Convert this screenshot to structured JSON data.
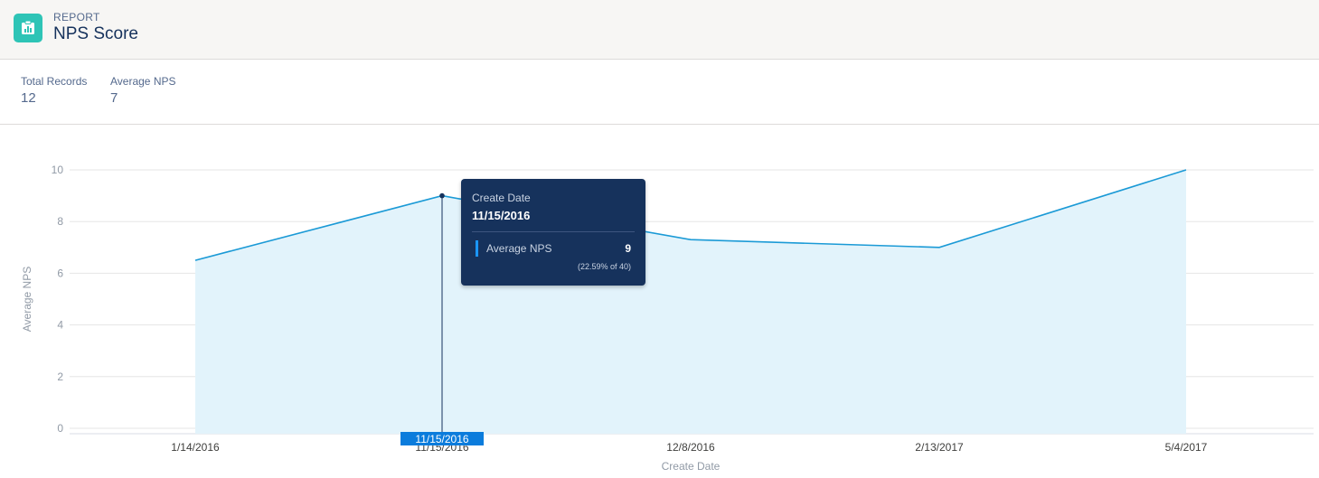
{
  "header": {
    "eyebrow": "REPORT",
    "title": "NPS Score",
    "icon": "report-icon"
  },
  "stats": [
    {
      "label": "Total Records",
      "value": "12"
    },
    {
      "label": "Average NPS",
      "value": "7"
    }
  ],
  "tooltip": {
    "label": "Create Date",
    "date": "11/15/2016",
    "series": "Average NPS",
    "value": "9",
    "percent": "(22.59% of 40)"
  },
  "colors": {
    "accent": "#1b96ff",
    "line": "#1b9ad6",
    "area": "#e2f3fb",
    "icon_bg": "#2ec4b6",
    "tooltip_bg": "#16325c"
  },
  "chart_data": {
    "type": "area",
    "categories": [
      "1/14/2016",
      "11/15/2016",
      "12/8/2016",
      "2/13/2017",
      "5/4/2017"
    ],
    "series": [
      {
        "name": "Average NPS",
        "values": [
          6.5,
          9,
          7.3,
          7,
          10
        ]
      }
    ],
    "xlabel": "Create Date",
    "ylabel": "Average NPS",
    "ylim": [
      0,
      10
    ],
    "yticks": [
      0,
      2,
      4,
      6,
      8,
      10
    ],
    "grid": true,
    "highlighted_category": "11/15/2016"
  }
}
